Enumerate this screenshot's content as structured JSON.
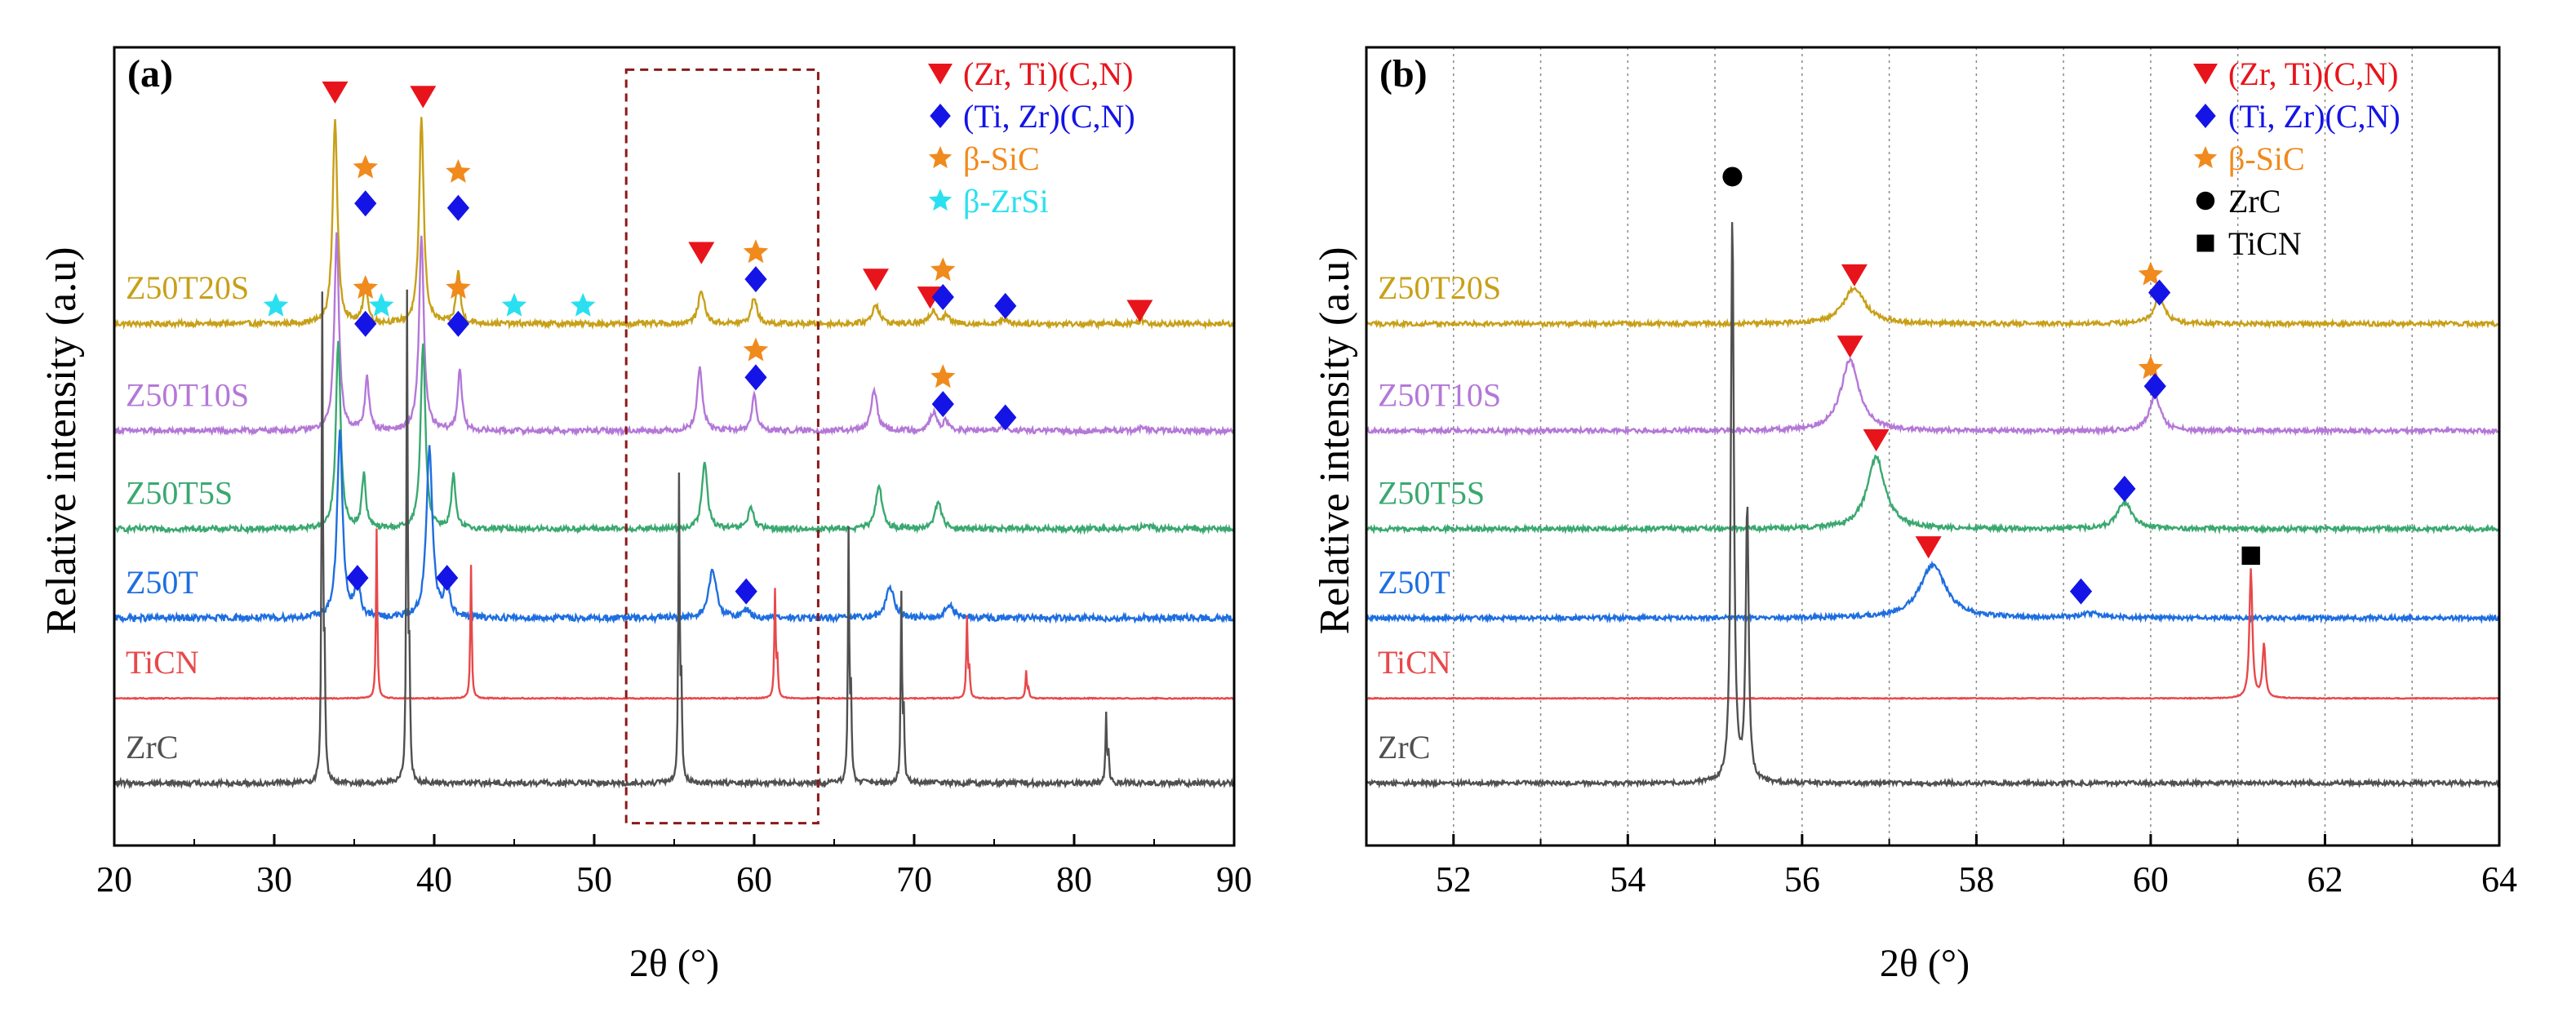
{
  "chart_data": [
    {
      "panel_label": "(a)",
      "type": "line",
      "xlabel": "2θ (°)",
      "ylabel": "Relative intensity (a.u)",
      "xlim": [
        20,
        90
      ],
      "xticks": [
        "20",
        "30",
        "40",
        "50",
        "60",
        "70",
        "80",
        "90"
      ],
      "grid": false,
      "highlight_box": {
        "x_range": [
          52,
          64
        ],
        "style": "dashed",
        "color": "#8b1a1a"
      },
      "legend": {
        "position": "top-right",
        "entries": [
          {
            "symbol": "triangle-down",
            "color": "#e8141c",
            "label": "(Zr, Ti)(C,N)"
          },
          {
            "symbol": "diamond",
            "color": "#1414e6",
            "label": "(Ti, Zr)(C,N)"
          },
          {
            "symbol": "star",
            "color": "#f08a1c",
            "label": "β-SiC"
          },
          {
            "symbol": "star",
            "color": "#2ae0f0",
            "label": "β-ZrSi"
          }
        ]
      },
      "series": [
        {
          "name": "Z50T20S",
          "color": "#c8a018",
          "baseline": 5.15,
          "noise": 0.03,
          "peaks": [
            [
              33.8,
              2.3,
              0.35
            ],
            [
              35.7,
              0.5,
              0.3
            ],
            [
              39.2,
              2.3,
              0.35
            ],
            [
              41.5,
              0.6,
              0.3
            ],
            [
              56.7,
              0.38,
              0.45
            ],
            [
              60.0,
              0.3,
              0.4
            ],
            [
              67.6,
              0.22,
              0.5
            ],
            [
              71.2,
              0.15,
              0.5
            ],
            [
              72.0,
              0.1,
              0.4
            ],
            [
              75.7,
              0.05,
              0.5
            ],
            [
              84.2,
              0.04,
              0.5
            ]
          ],
          "markers": [
            {
              "x": 33.8,
              "dy": 2.6,
              "symbol": "triangle-down",
              "color": "#e8141c"
            },
            {
              "x": 39.3,
              "dy": 2.55,
              "symbol": "triangle-down",
              "color": "#e8141c"
            },
            {
              "x": 35.7,
              "dy": 1.75,
              "symbol": "star",
              "color": "#f08a1c"
            },
            {
              "x": 35.7,
              "dy": 1.35,
              "symbol": "diamond",
              "color": "#1414e6"
            },
            {
              "x": 41.5,
              "dy": 1.7,
              "symbol": "star",
              "color": "#f08a1c"
            },
            {
              "x": 41.5,
              "dy": 1.3,
              "symbol": "diamond",
              "color": "#1414e6"
            },
            {
              "x": 56.7,
              "dy": 0.8,
              "symbol": "triangle-down",
              "color": "#e8141c"
            },
            {
              "x": 60.1,
              "dy": 0.8,
              "symbol": "star",
              "color": "#f08a1c"
            },
            {
              "x": 60.1,
              "dy": 0.5,
              "symbol": "diamond",
              "color": "#1414e6"
            },
            {
              "x": 67.6,
              "dy": 0.5,
              "symbol": "triangle-down",
              "color": "#e8141c"
            },
            {
              "x": 71.8,
              "dy": 0.6,
              "symbol": "star",
              "color": "#f08a1c"
            },
            {
              "x": 71.0,
              "dy": 0.3,
              "symbol": "triangle-down",
              "color": "#e8141c"
            },
            {
              "x": 71.8,
              "dy": 0.3,
              "symbol": "diamond",
              "color": "#1414e6"
            },
            {
              "x": 75.7,
              "dy": 0.2,
              "symbol": "diamond",
              "color": "#1414e6"
            },
            {
              "x": 84.1,
              "dy": 0.15,
              "symbol": "triangle-down",
              "color": "#e8141c"
            },
            {
              "x": 30.1,
              "dy": 0.2,
              "symbol": "star",
              "color": "#2ae0f0"
            },
            {
              "x": 36.7,
              "dy": 0.2,
              "symbol": "star",
              "color": "#2ae0f0"
            },
            {
              "x": 45.0,
              "dy": 0.2,
              "symbol": "star",
              "color": "#2ae0f0"
            },
            {
              "x": 49.3,
              "dy": 0.2,
              "symbol": "star",
              "color": "#2ae0f0"
            }
          ]
        },
        {
          "name": "Z50T10S",
          "color": "#b478d8",
          "baseline": 3.95,
          "noise": 0.03,
          "peaks": [
            [
              33.9,
              2.2,
              0.35
            ],
            [
              35.8,
              0.6,
              0.3
            ],
            [
              39.2,
              2.2,
              0.35
            ],
            [
              41.6,
              0.7,
              0.3
            ],
            [
              56.6,
              0.7,
              0.4
            ],
            [
              60.0,
              0.4,
              0.35
            ],
            [
              67.5,
              0.45,
              0.45
            ],
            [
              71.2,
              0.2,
              0.5
            ],
            [
              72.0,
              0.1,
              0.4
            ],
            [
              75.6,
              0.05,
              0.5
            ],
            [
              84.3,
              0.04,
              0.5
            ]
          ],
          "markers": [
            {
              "x": 35.7,
              "dy": 1.6,
              "symbol": "star",
              "color": "#f08a1c"
            },
            {
              "x": 35.7,
              "dy": 1.2,
              "symbol": "diamond",
              "color": "#1414e6"
            },
            {
              "x": 41.5,
              "dy": 1.6,
              "symbol": "star",
              "color": "#f08a1c"
            },
            {
              "x": 41.5,
              "dy": 1.2,
              "symbol": "diamond",
              "color": "#1414e6"
            },
            {
              "x": 60.1,
              "dy": 0.9,
              "symbol": "star",
              "color": "#f08a1c"
            },
            {
              "x": 60.1,
              "dy": 0.6,
              "symbol": "diamond",
              "color": "#1414e6"
            },
            {
              "x": 71.8,
              "dy": 0.6,
              "symbol": "star",
              "color": "#f08a1c"
            },
            {
              "x": 71.8,
              "dy": 0.3,
              "symbol": "diamond",
              "color": "#1414e6"
            },
            {
              "x": 75.7,
              "dy": 0.15,
              "symbol": "diamond",
              "color": "#1414e6"
            }
          ]
        },
        {
          "name": "Z50T5S",
          "color": "#3aa870",
          "baseline": 2.85,
          "noise": 0.03,
          "peaks": [
            [
              34.0,
              2.1,
              0.35
            ],
            [
              35.6,
              0.6,
              0.3
            ],
            [
              39.3,
              2.1,
              0.35
            ],
            [
              41.2,
              0.6,
              0.3
            ],
            [
              56.9,
              0.75,
              0.4
            ],
            [
              59.8,
              0.25,
              0.4
            ],
            [
              67.8,
              0.5,
              0.45
            ],
            [
              71.5,
              0.3,
              0.5
            ],
            [
              84.5,
              0.05,
              0.5
            ]
          ],
          "markers": []
        },
        {
          "name": "Z50T",
          "color": "#1e6ee0",
          "baseline": 1.85,
          "noise": 0.035,
          "peaks": [
            [
              34.1,
              2.1,
              0.4
            ],
            [
              35.2,
              0.45,
              0.35
            ],
            [
              39.7,
              1.9,
              0.45
            ],
            [
              40.8,
              0.45,
              0.35
            ],
            [
              57.4,
              0.55,
              0.55
            ],
            [
              59.5,
              0.1,
              0.5
            ],
            [
              68.5,
              0.35,
              0.6
            ],
            [
              72.2,
              0.15,
              0.6
            ]
          ],
          "markers": [
            {
              "x": 35.2,
              "dy": 0.45,
              "symbol": "diamond",
              "color": "#1414e6"
            },
            {
              "x": 40.8,
              "dy": 0.45,
              "symbol": "diamond",
              "color": "#1414e6"
            },
            {
              "x": 59.5,
              "dy": 0.3,
              "symbol": "diamond",
              "color": "#1414e6"
            }
          ]
        },
        {
          "name": "TiCN",
          "color": "#e8484a",
          "baseline": 0.95,
          "noise": 0.006,
          "peaks": [
            [
              36.4,
              1.9,
              0.1
            ],
            [
              42.3,
              1.5,
              0.1
            ],
            [
              61.3,
              1.2,
              0.1
            ],
            [
              61.45,
              0.4,
              0.1
            ],
            [
              73.3,
              0.9,
              0.1
            ],
            [
              73.45,
              0.3,
              0.1
            ],
            [
              77.0,
              0.3,
              0.1
            ],
            [
              77.15,
              0.1,
              0.1
            ]
          ],
          "markers": []
        },
        {
          "name": "ZrC",
          "color": "#505050",
          "baseline": 0.0,
          "noise": 0.03,
          "peaks": [
            [
              33.0,
              5.4,
              0.1
            ],
            [
              33.15,
              1.2,
              0.1
            ],
            [
              38.3,
              5.4,
              0.1
            ],
            [
              38.45,
              1.2,
              0.1
            ],
            [
              55.3,
              3.4,
              0.1
            ],
            [
              55.45,
              1.0,
              0.1
            ],
            [
              65.9,
              2.8,
              0.1
            ],
            [
              66.05,
              0.9,
              0.1
            ],
            [
              69.2,
              2.1,
              0.1
            ],
            [
              69.35,
              0.7,
              0.1
            ],
            [
              82.0,
              0.75,
              0.1
            ],
            [
              82.15,
              0.3,
              0.1
            ]
          ],
          "markers": []
        }
      ]
    },
    {
      "panel_label": "(b)",
      "type": "line",
      "xlabel": "2θ (°)",
      "ylabel": "Relative intensity (a.u)",
      "xlim": [
        51,
        64
      ],
      "xticks": [
        "52",
        "54",
        "56",
        "58",
        "60",
        "62",
        "64"
      ],
      "grid": true,
      "grid_style": "dotted vertical lines at each integer",
      "legend": {
        "position": "top-right",
        "entries": [
          {
            "symbol": "triangle-down",
            "color": "#e8141c",
            "label": "(Zr, Ti)(C,N)"
          },
          {
            "symbol": "diamond",
            "color": "#1414e6",
            "label": "(Ti, Zr)(C,N)"
          },
          {
            "symbol": "star",
            "color": "#f08a1c",
            "label": "β-SiC"
          },
          {
            "symbol": "circle",
            "color": "#000000",
            "label": "ZrC"
          },
          {
            "symbol": "square",
            "color": "#000000",
            "label": "TiCN"
          }
        ]
      },
      "series": [
        {
          "name": "Z50T20S",
          "color": "#c8a018",
          "baseline": 5.15,
          "noise": 0.025,
          "peaks": [
            [
              56.6,
              0.4,
              0.3
            ],
            [
              60.1,
              0.3,
              0.15
            ]
          ],
          "markers": [
            {
              "x": 56.6,
              "dy": 0.55,
              "symbol": "triangle-down",
              "color": "#e8141c"
            },
            {
              "x": 60.0,
              "dy": 0.55,
              "symbol": "star",
              "color": "#f08a1c"
            },
            {
              "x": 60.1,
              "dy": 0.35,
              "symbol": "diamond",
              "color": "#1414e6"
            }
          ]
        },
        {
          "name": "Z50T10S",
          "color": "#b478d8",
          "baseline": 3.95,
          "noise": 0.025,
          "peaks": [
            [
              56.55,
              0.8,
              0.25
            ],
            [
              60.05,
              0.4,
              0.15
            ]
          ],
          "markers": [
            {
              "x": 56.55,
              "dy": 0.95,
              "symbol": "triangle-down",
              "color": "#e8141c"
            },
            {
              "x": 60.0,
              "dy": 0.7,
              "symbol": "star",
              "color": "#f08a1c"
            },
            {
              "x": 60.05,
              "dy": 0.5,
              "symbol": "diamond",
              "color": "#1414e6"
            }
          ]
        },
        {
          "name": "Z50T5S",
          "color": "#3aa870",
          "baseline": 2.85,
          "noise": 0.025,
          "peaks": [
            [
              56.85,
              0.8,
              0.25
            ],
            [
              59.7,
              0.3,
              0.2
            ]
          ],
          "markers": [
            {
              "x": 56.85,
              "dy": 1.0,
              "symbol": "triangle-down",
              "color": "#e8141c"
            },
            {
              "x": 59.7,
              "dy": 0.45,
              "symbol": "diamond",
              "color": "#1414e6"
            }
          ]
        },
        {
          "name": "Z50T",
          "color": "#1e6ee0",
          "baseline": 1.85,
          "noise": 0.025,
          "peaks": [
            [
              57.5,
              0.6,
              0.35
            ],
            [
              59.3,
              0.05,
              0.3
            ]
          ],
          "markers": [
            {
              "x": 57.45,
              "dy": 0.8,
              "symbol": "triangle-down",
              "color": "#e8141c"
            },
            {
              "x": 59.2,
              "dy": 0.3,
              "symbol": "diamond",
              "color": "#1414e6"
            }
          ]
        },
        {
          "name": "TiCN",
          "color": "#e8484a",
          "baseline": 0.95,
          "noise": 0.005,
          "peaks": [
            [
              61.15,
              1.45,
              0.04
            ],
            [
              61.3,
              0.6,
              0.04
            ]
          ],
          "markers": [
            {
              "x": 61.15,
              "dy": 1.6,
              "symbol": "square",
              "color": "#000000"
            }
          ]
        },
        {
          "name": "ZrC",
          "color": "#505050",
          "baseline": 0.0,
          "noise": 0.025,
          "peaks": [
            [
              55.2,
              6.4,
              0.04
            ],
            [
              55.37,
              3.1,
              0.04
            ]
          ],
          "markers": [
            {
              "x": 55.2,
              "dy": 6.8,
              "symbol": "circle",
              "color": "#000000"
            }
          ]
        }
      ]
    }
  ]
}
